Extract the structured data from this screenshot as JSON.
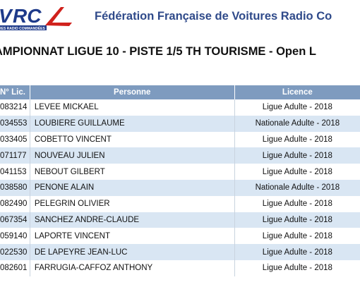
{
  "header": {
    "org_name": "Fédération Française de Voitures Radio Co",
    "logo_text": "RC",
    "logo_small": "RES RADIO COMMANDÉES"
  },
  "title": "AMPIONNAT LIGUE 10 - PISTE 1/5 TH TOURISME - Open L",
  "table": {
    "columns": {
      "lic": "N° Lic.",
      "person": "Personne",
      "licence": "Licence"
    },
    "rows": [
      {
        "lic": "083214",
        "person": "LEVEE MICKAEL",
        "licence": "Ligue Adulte - 2018"
      },
      {
        "lic": "034553",
        "person": "LOUBIERE GUILLAUME",
        "licence": "Nationale Adulte - 2018"
      },
      {
        "lic": "033405",
        "person": "COBETTO VINCENT",
        "licence": "Ligue Adulte - 2018"
      },
      {
        "lic": "071177",
        "person": "NOUVEAU JULIEN",
        "licence": "Ligue Adulte - 2018"
      },
      {
        "lic": "041153",
        "person": "NEBOUT GILBERT",
        "licence": "Ligue Adulte - 2018"
      },
      {
        "lic": "038580",
        "person": "PENONE ALAIN",
        "licence": "Nationale Adulte - 2018"
      },
      {
        "lic": "082490",
        "person": "PELEGRIN OLIVIER",
        "licence": "Ligue Adulte - 2018"
      },
      {
        "lic": "067354",
        "person": "SANCHEZ ANDRE-CLAUDE",
        "licence": "Ligue Adulte - 2018"
      },
      {
        "lic": "059140",
        "person": "LAPORTE VINCENT",
        "licence": "Ligue Adulte - 2018"
      },
      {
        "lic": "022530",
        "person": "DE LAPEYRE JEAN-LUC",
        "licence": "Ligue Adulte - 2018"
      },
      {
        "lic": "082601",
        "person": "FARRUGIA-CAFFOZ ANTHONY",
        "licence": "Ligue Adulte - 2018"
      }
    ]
  }
}
